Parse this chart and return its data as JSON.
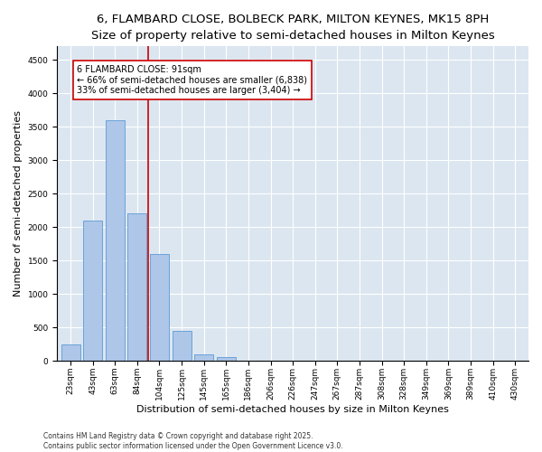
{
  "title_line1": "6, FLAMBARD CLOSE, BOLBECK PARK, MILTON KEYNES, MK15 8PH",
  "title_line2": "Size of property relative to semi-detached houses in Milton Keynes",
  "xlabel": "Distribution of semi-detached houses by size in Milton Keynes",
  "ylabel": "Number of semi-detached properties",
  "categories": [
    "23sqm",
    "43sqm",
    "63sqm",
    "84sqm",
    "104sqm",
    "125sqm",
    "145sqm",
    "165sqm",
    "186sqm",
    "206sqm",
    "226sqm",
    "247sqm",
    "267sqm",
    "287sqm",
    "308sqm",
    "328sqm",
    "349sqm",
    "369sqm",
    "389sqm",
    "410sqm",
    "430sqm"
  ],
  "values": [
    250,
    2100,
    3600,
    2200,
    1600,
    450,
    100,
    55,
    0,
    0,
    0,
    0,
    0,
    0,
    0,
    0,
    0,
    0,
    0,
    0,
    0
  ],
  "bar_color": "#aec6e8",
  "bar_edge_color": "#5b9bd5",
  "vline_x": 3.5,
  "vline_color": "#cc0000",
  "annotation_title": "6 FLAMBARD CLOSE: 91sqm",
  "annotation_line1": "← 66% of semi-detached houses are smaller (6,838)",
  "annotation_line2": "33% of semi-detached houses are larger (3,404) →",
  "annotation_box_color": "#ffffff",
  "annotation_box_edge": "#cc0000",
  "ylim": [
    0,
    4700
  ],
  "yticks": [
    0,
    500,
    1000,
    1500,
    2000,
    2500,
    3000,
    3500,
    4000,
    4500
  ],
  "background_color": "#dce6f1",
  "footnote": "Contains HM Land Registry data © Crown copyright and database right 2025.\nContains public sector information licensed under the Open Government Licence v3.0.",
  "title_fontsize": 9.5,
  "subtitle_fontsize": 8.5,
  "axis_label_fontsize": 8,
  "tick_fontsize": 6.5,
  "annot_fontsize": 7,
  "footnote_fontsize": 5.5
}
